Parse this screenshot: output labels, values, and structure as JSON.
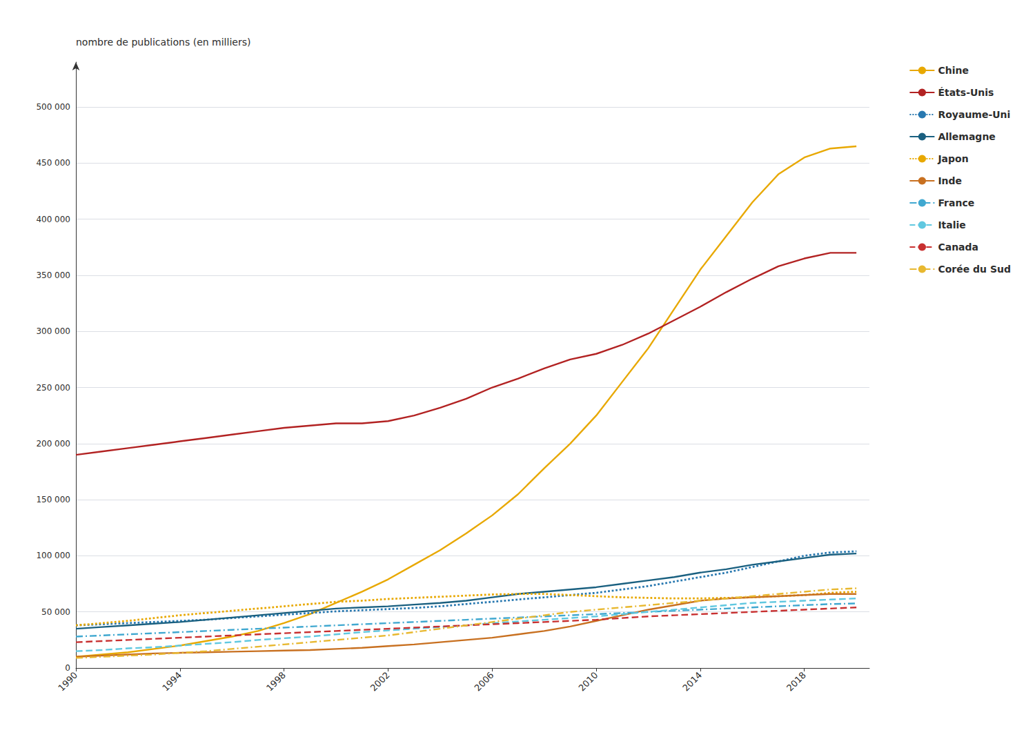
{
  "chart_data": {
    "type": "line",
    "ylabel": "nombre de publications (en milliers)",
    "ylim": [
      0,
      540000
    ],
    "yticks": [
      0,
      {
        "value": 50000,
        "label": "50 000"
      },
      {
        "value": 100000,
        "label": "100 000"
      },
      {
        "value": 150000,
        "label": "150 000"
      },
      {
        "value": 200000,
        "label": "200 000"
      },
      {
        "value": 250000,
        "label": "250 000"
      },
      {
        "value": 300000,
        "label": "300 000"
      },
      {
        "value": 350000,
        "label": "350 000"
      },
      {
        "value": 400000,
        "label": "400 000"
      },
      {
        "value": 450000,
        "label": "450 000"
      },
      {
        "value": 500000,
        "label": "500 000"
      }
    ],
    "xlim": [
      1990,
      2020.5
    ],
    "xticks": [
      1990,
      1994,
      1998,
      2002,
      2006,
      2010,
      2014,
      2018
    ],
    "grid": true,
    "legend": "right",
    "x": [
      1990,
      1991,
      1992,
      1993,
      1994,
      1995,
      1996,
      1997,
      1998,
      1999,
      2000,
      2001,
      2002,
      2003,
      2004,
      2005,
      2006,
      2007,
      2008,
      2009,
      2010,
      2011,
      2012,
      2013,
      2014,
      2015,
      2016,
      2017,
      2018,
      2019,
      2020
    ],
    "series": [
      {
        "name": "Chine",
        "color": "#e8a800",
        "line_style": "solid",
        "values": [
          10000,
          12000,
          14000,
          17000,
          20000,
          24000,
          28000,
          33000,
          40000,
          48000,
          58000,
          68000,
          79000,
          92000,
          105000,
          120000,
          136000,
          155000,
          178000,
          200000,
          225000,
          255000,
          285000,
          320000,
          355000,
          385000,
          415000,
          440000,
          455000,
          463000,
          465000
        ]
      },
      {
        "name": "États-Unis",
        "color": "#b22222",
        "line_style": "solid",
        "values": [
          190000,
          193000,
          196000,
          199000,
          202000,
          205000,
          208000,
          211000,
          214000,
          216000,
          218000,
          218000,
          220000,
          225000,
          232000,
          240000,
          250000,
          258000,
          267000,
          275000,
          280000,
          288000,
          298000,
          310000,
          322000,
          335000,
          347000,
          358000,
          365000,
          370000,
          370000
        ]
      },
      {
        "name": "Royaume-Uni",
        "color": "#2878b0",
        "line_style": "dotted",
        "values": [
          38000,
          39000,
          40000,
          41000,
          42000,
          43000,
          44500,
          46000,
          47500,
          49000,
          50500,
          51500,
          52500,
          53500,
          55000,
          57000,
          59000,
          61000,
          63000,
          65000,
          67000,
          70000,
          73000,
          77000,
          81000,
          85000,
          90000,
          95000,
          100000,
          103000,
          104000
        ]
      },
      {
        "name": "Allemagne",
        "color": "#1a6080",
        "line_style": "solid",
        "values": [
          35000,
          36500,
          38000,
          39500,
          41000,
          43000,
          45000,
          47000,
          49000,
          51000,
          53000,
          54000,
          55000,
          56500,
          58000,
          60000,
          63000,
          66000,
          68000,
          70000,
          72000,
          75000,
          78000,
          81000,
          85000,
          88000,
          92000,
          95000,
          98000,
          101000,
          102000
        ]
      },
      {
        "name": "Japon",
        "color": "#e8a800",
        "line_style": "dotted",
        "values": [
          38000,
          40000,
          42000,
          44500,
          47000,
          49000,
          51000,
          53000,
          55000,
          57000,
          59000,
          60000,
          61500,
          62500,
          63500,
          64500,
          65500,
          66000,
          66000,
          65000,
          64000,
          63000,
          62500,
          62000,
          62000,
          62500,
          63000,
          64000,
          65000,
          67000,
          68000
        ]
      },
      {
        "name": "Inde",
        "color": "#c87020",
        "line_style": "solid",
        "values": [
          10000,
          11000,
          12000,
          13000,
          13500,
          14000,
          14500,
          15000,
          15500,
          16000,
          17000,
          18000,
          19500,
          21000,
          23000,
          25000,
          27000,
          30000,
          33000,
          37000,
          42000,
          47000,
          52000,
          56000,
          60000,
          62000,
          63000,
          64000,
          65000,
          66000,
          66000
        ]
      },
      {
        "name": "France",
        "color": "#40a8d0",
        "line_style": "dashdot",
        "values": [
          28000,
          29000,
          30000,
          31000,
          32000,
          33000,
          34000,
          35000,
          36000,
          37000,
          38000,
          39000,
          40000,
          41000,
          42000,
          43000,
          44000,
          45000,
          46000,
          47000,
          48000,
          49000,
          50000,
          51000,
          52000,
          53000,
          54000,
          55000,
          56000,
          57000,
          57500
        ]
      },
      {
        "name": "Italie",
        "color": "#60c8e0",
        "line_style": "dashed",
        "values": [
          15000,
          16000,
          17500,
          18500,
          20000,
          21500,
          23000,
          25000,
          26500,
          28000,
          30000,
          32000,
          33500,
          35000,
          36500,
          38000,
          40000,
          41500,
          43000,
          44500,
          46000,
          48000,
          50000,
          52000,
          54000,
          56000,
          58000,
          59000,
          60000,
          61000,
          62000
        ]
      },
      {
        "name": "Canada",
        "color": "#c83030",
        "line_style": "dashed",
        "values": [
          23000,
          24000,
          25000,
          26000,
          27000,
          28000,
          29000,
          30000,
          31000,
          32000,
          33000,
          34000,
          35000,
          36000,
          37000,
          38000,
          39000,
          40000,
          41000,
          42000,
          43000,
          44500,
          46000,
          47000,
          48000,
          49000,
          50000,
          51000,
          52000,
          53000,
          54000
        ]
      },
      {
        "name": "Corée du Sud",
        "color": "#e8b830",
        "line_style": "dashdot",
        "values": [
          9000,
          10000,
          11000,
          12000,
          13500,
          15000,
          17000,
          19000,
          21000,
          23000,
          25000,
          27000,
          29000,
          32000,
          35000,
          38000,
          41000,
          44000,
          47000,
          50000,
          52000,
          54000,
          56000,
          58000,
          60000,
          62000,
          64000,
          66000,
          68000,
          70000,
          71000
        ]
      }
    ]
  }
}
